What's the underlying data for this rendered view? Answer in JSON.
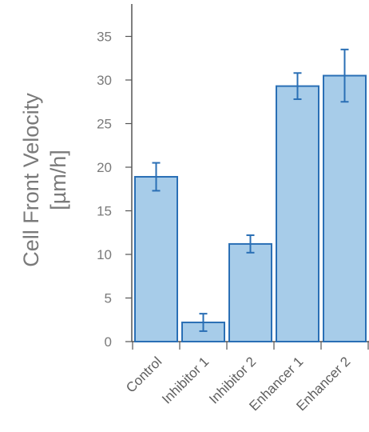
{
  "chart_data": {
    "type": "bar",
    "categories": [
      "Control",
      "Inhibitor 1",
      "Inhibitor 2",
      "Enhancer 1",
      "Enhancer 2"
    ],
    "values": [
      18.9,
      2.2,
      11.2,
      29.3,
      30.5
    ],
    "errors": [
      1.6,
      1.0,
      1.0,
      1.5,
      3.0
    ],
    "title": "",
    "xlabel": "",
    "ylabel": [
      "Cell Front Velocity",
      "[µm/h]"
    ],
    "ylim": [
      0,
      35
    ],
    "yticks": [
      0,
      5,
      10,
      15,
      20,
      25,
      30,
      35
    ],
    "grid": false,
    "colors": {
      "bar_fill": "#a7cce9",
      "bar_stroke": "#2a6fb5",
      "error_bar": "#2a6fb5",
      "axis": "#555555"
    }
  }
}
